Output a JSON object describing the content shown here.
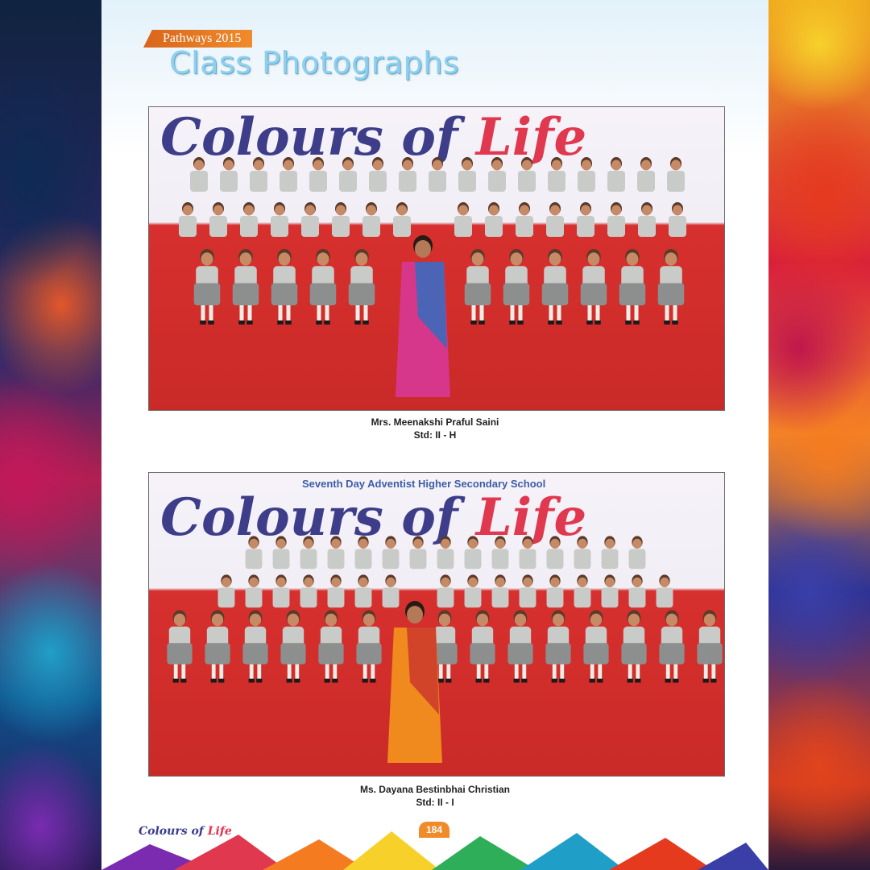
{
  "header": {
    "tag": "Pathways 2015",
    "title": "Class Photographs"
  },
  "photos": [
    {
      "banner_text_1": "Colours of ",
      "banner_text_2": "Life",
      "school_name": "",
      "teacher": "Mrs. Meenakshi Praful Saini",
      "standard": "Std: II - H"
    },
    {
      "banner_text_1": "Colours of ",
      "banner_text_2": "Life",
      "school_name": "Seventh Day Adventist Higher Secondary School",
      "teacher": "Ms. Dayana Bestinbhai Christian",
      "standard": "Std: II - I"
    }
  ],
  "footer": {
    "logo_part_1": "Colours of ",
    "logo_part_2": "Life",
    "page_number": "184"
  },
  "colors": {
    "title": "#8fd0ee",
    "tag_bg": "#f08b2a",
    "stage_red": "#c92a28",
    "uniform_grey": "#9a9c9c"
  }
}
